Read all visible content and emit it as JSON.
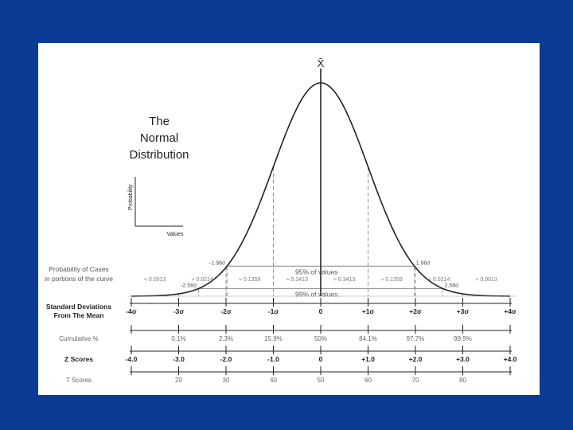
{
  "title": [
    "The",
    "Normal",
    "Distribution"
  ],
  "mean_symbol": "X̄",
  "inset": {
    "ylabel": "Probability",
    "xlabel": "Values"
  },
  "bands": [
    {
      "left_label": "-1.98σ",
      "right_label": "1.98σ",
      "text": "95% of values"
    },
    {
      "left_label": "-2.58σ",
      "right_label": "2.58σ",
      "text": "99% of values"
    }
  ],
  "probability_heading": [
    "Probability of Cases",
    "in portions of the curve"
  ],
  "probabilities": [
    "≈ 0.0013",
    "≈ 0.0214",
    "≈ 0.1359",
    "≈ 0.3413",
    "≈ 0.3413",
    "≈ 0.1359",
    "≈ 0.0214",
    "≈ 0.0013"
  ],
  "rows": [
    {
      "label": [
        "Standard Deviations",
        "From The Mean"
      ],
      "bold": true,
      "values": [
        "-4σ",
        "-3σ",
        "-2σ",
        "-1σ",
        "0",
        "+1σ",
        "+2σ",
        "+3σ",
        "+4σ"
      ]
    },
    {
      "label": [
        "Cumulative %"
      ],
      "bold": false,
      "values": [
        "",
        "0.1%",
        "2.3%",
        "15.9%",
        "50%",
        "84.1%",
        "97.7%",
        "99.9%",
        ""
      ]
    },
    {
      "label": [
        "Z Scores"
      ],
      "bold": true,
      "values": [
        "-4.0",
        "-3.0",
        "-2.0",
        "-1.0",
        "0",
        "+1.0",
        "+2.0",
        "+3.0",
        "+4.0"
      ]
    },
    {
      "label": [
        "T Scores"
      ],
      "bold": false,
      "values": [
        "",
        "20",
        "30",
        "40",
        "50",
        "60",
        "70",
        "80",
        ""
      ]
    }
  ],
  "colors": {
    "background": "#0b3b94",
    "card": "#ffffff",
    "ink": "#222222",
    "guide": "#777777",
    "band": "#8a8a8a",
    "muted": "#666666"
  }
}
